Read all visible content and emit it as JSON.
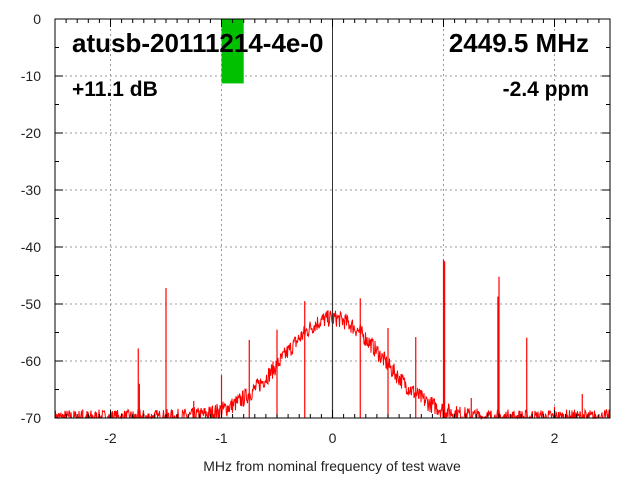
{
  "chart_data": {
    "type": "line",
    "title": "atusb-20111214-4e-0",
    "frequency_label": "2449.5 MHz",
    "gain_label": "+11.1 dB",
    "offset_label": "-2.4 ppm",
    "xlabel": "MHz from nominal frequency of test wave",
    "ylabel": "",
    "xlim": [
      -2.5,
      2.5
    ],
    "ylim": [
      -70,
      0
    ],
    "xticks": [
      "-2",
      "-1",
      "0",
      "1",
      "2"
    ],
    "xtick_values": [
      -2,
      -1,
      0,
      1,
      2
    ],
    "yticks": [
      "0",
      "-10",
      "-20",
      "-30",
      "-40",
      "-50",
      "-60",
      "-70"
    ],
    "ytick_values": [
      0,
      -10,
      -20,
      -30,
      -40,
      -50,
      -60,
      -70
    ],
    "grid": true,
    "series_color": "#ff0000",
    "level_bar": {
      "color": "#00c000",
      "x_range": [
        -1.0,
        -0.8
      ],
      "value_db": -11.3
    },
    "carrier": {
      "x": 0,
      "y": 0
    },
    "noise_floor": {
      "peak_db": -52.5,
      "floor_db": -70,
      "sigma_mhz": 0.445,
      "ripple_db": 1.5
    },
    "spurs": [
      {
        "x": -2.25,
        "y": -68.5
      },
      {
        "x": -2.0,
        "y": -69.5
      },
      {
        "x": -1.75,
        "y": -57.8
      },
      {
        "x": -1.74,
        "y": -64
      },
      {
        "x": -1.5,
        "y": -47.2
      },
      {
        "x": -1.25,
        "y": -67
      },
      {
        "x": -1.0,
        "y": -62.5
      },
      {
        "x": -0.75,
        "y": -56.3
      },
      {
        "x": -0.5,
        "y": -54.5
      },
      {
        "x": -0.25,
        "y": -49.5
      },
      {
        "x": 0.0,
        "y": -38.8
      },
      {
        "x": 0.25,
        "y": -49
      },
      {
        "x": 0.5,
        "y": -54.2
      },
      {
        "x": 0.75,
        "y": -55.8
      },
      {
        "x": 1.0,
        "y": -42.2
      },
      {
        "x": 1.01,
        "y": -42.5
      },
      {
        "x": 1.25,
        "y": -66.5
      },
      {
        "x": 1.5,
        "y": -45.2
      },
      {
        "x": 1.49,
        "y": -48.7
      },
      {
        "x": 1.75,
        "y": -55.9
      },
      {
        "x": 1.8,
        "y": -68.8
      },
      {
        "x": 2.0,
        "y": -68
      },
      {
        "x": 2.25,
        "y": -65.8
      }
    ]
  }
}
